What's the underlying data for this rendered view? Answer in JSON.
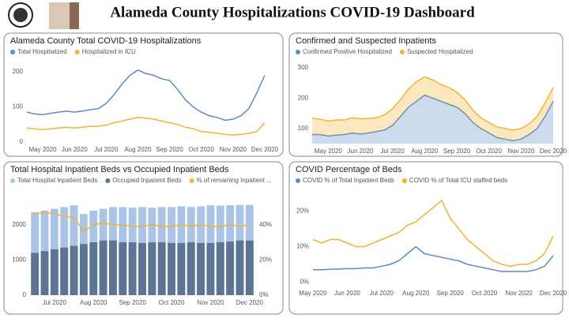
{
  "page_title": "Alameda County Hospitalizations COVID-19 Dashboard",
  "chart_data": [
    {
      "type": "line",
      "title": "Alameda County Total COVID-19 Hospitalizations",
      "categories": [
        null,
        null,
        "May 2020",
        null,
        null,
        null,
        "Jun 2020",
        null,
        null,
        null,
        "Jul 2020",
        null,
        null,
        null,
        "Aug 2020",
        null,
        null,
        null,
        "Sep 2020",
        null,
        null,
        null,
        "Oct 2020",
        null,
        null,
        null,
        "Nov 2020",
        null,
        null,
        null,
        "Dec 2020"
      ],
      "series": [
        {
          "name": "Total Hospitalized",
          "color": "#5b8cbf",
          "values": [
            85,
            80,
            78,
            82,
            85,
            88,
            85,
            88,
            92,
            95,
            110,
            135,
            165,
            190,
            205,
            195,
            190,
            180,
            175,
            150,
            120,
            100,
            85,
            75,
            70,
            62,
            65,
            75,
            95,
            140,
            190
          ]
        },
        {
          "name": "Hospitalized in ICU",
          "color": "#f2b430",
          "values": [
            40,
            38,
            35,
            38,
            40,
            42,
            40,
            42,
            45,
            45,
            48,
            55,
            60,
            65,
            70,
            68,
            65,
            60,
            55,
            50,
            42,
            38,
            30,
            28,
            25,
            22,
            20,
            22,
            25,
            30,
            55
          ]
        }
      ],
      "ylim": [
        0,
        220
      ],
      "yticks": [
        0,
        100,
        200
      ]
    },
    {
      "type": "area",
      "title": "Confirmed and Suspected Inpatients",
      "stacked": true,
      "categories": [
        null,
        null,
        "May 2020",
        null,
        null,
        null,
        "Jun 2020",
        null,
        null,
        null,
        "Jul 2020",
        null,
        null,
        null,
        "Aug 2020",
        null,
        null,
        null,
        "Sep 2020",
        null,
        null,
        null,
        "Oct 2020",
        null,
        null,
        null,
        "Nov 2020",
        null,
        null,
        null,
        "Dec 2020"
      ],
      "series": [
        {
          "name": "Confirmed Positive Hospitalized",
          "color": "#5b8cbf",
          "values": [
            80,
            80,
            75,
            78,
            80,
            85,
            82,
            85,
            90,
            95,
            110,
            140,
            170,
            190,
            210,
            200,
            190,
            180,
            170,
            150,
            120,
            100,
            85,
            70,
            65,
            60,
            65,
            80,
            100,
            140,
            190
          ]
        },
        {
          "name": "Suspected Hospitalized",
          "color": "#f2b430",
          "values": [
            55,
            50,
            50,
            50,
            48,
            50,
            50,
            48,
            45,
            50,
            55,
            55,
            60,
            65,
            60,
            60,
            55,
            55,
            50,
            45,
            40,
            35,
            35,
            35,
            35,
            35,
            35,
            35,
            40,
            45,
            45
          ]
        }
      ],
      "ylim": [
        50,
        310
      ],
      "yticks": [
        100,
        200,
        300
      ]
    },
    {
      "type": "bar",
      "title": "Total Hospital Inpatient Beds vs Occupied Inpatient Beds",
      "categories": [
        null,
        null,
        "Jul 2020",
        null,
        null,
        null,
        "Aug 2020",
        null,
        null,
        null,
        "Sep 2020",
        null,
        null,
        null,
        "Oct 2020",
        null,
        null,
        null,
        "Nov 2020",
        null,
        null,
        null,
        "Dec 2020"
      ],
      "series": [
        {
          "name": "Total Hospital Inpatient Beds",
          "color": "#a9c4e6",
          "values": [
            2350,
            2400,
            2450,
            2500,
            2550,
            2300,
            2400,
            2450,
            2500,
            2500,
            2480,
            2500,
            2480,
            2500,
            2500,
            2520,
            2500,
            2520,
            2550,
            2540,
            2550,
            2560,
            2560
          ]
        },
        {
          "name": "Occupied Inpatient Beds",
          "color": "#5b7593",
          "values": [
            1200,
            1250,
            1300,
            1350,
            1400,
            1450,
            1500,
            1550,
            1550,
            1500,
            1500,
            1480,
            1500,
            1500,
            1480,
            1480,
            1500,
            1480,
            1480,
            1500,
            1520,
            1550,
            1550
          ]
        },
        {
          "name": "% of remaining Inpatient ...",
          "color": "#f2b430",
          "axis": "y2",
          "values": [
            46,
            47,
            46,
            45,
            44,
            36,
            40,
            41,
            40,
            40,
            39,
            39,
            40,
            39,
            39,
            40,
            39,
            40,
            39,
            39,
            40,
            39,
            40
          ]
        }
      ],
      "ylim": [
        0,
        3000
      ],
      "yticks": [
        0,
        1000,
        2000
      ],
      "y2lim": [
        0,
        60
      ],
      "y2ticks": [
        {
          "value": 0,
          "label": "0%"
        },
        {
          "value": 20,
          "label": "20%"
        },
        {
          "value": 40,
          "label": "40%"
        }
      ]
    },
    {
      "type": "line",
      "title": "COVID Percentage of Beds",
      "categories": [
        "May 2020",
        null,
        null,
        null,
        "Jun 2020",
        null,
        null,
        null,
        "Jul 2020",
        null,
        null,
        null,
        "Aug 2020",
        null,
        null,
        null,
        "Sep 2020",
        null,
        null,
        null,
        "Oct 2020",
        null,
        null,
        null,
        "Nov 2020",
        null,
        null,
        null,
        "Dec 2020"
      ],
      "series": [
        {
          "name": "COVID % of Total Inpatient Beds",
          "color": "#5b8cbf",
          "values": [
            3.5,
            3.5,
            3.6,
            3.7,
            3.8,
            3.8,
            4,
            4,
            4.5,
            5,
            6,
            8,
            10,
            8,
            7.5,
            7,
            6.5,
            6,
            5,
            4.5,
            4,
            3.5,
            3,
            3,
            3,
            3,
            3.5,
            4.5,
            7.5
          ]
        },
        {
          "name": "COVID % of Total ICU staffed beds",
          "color": "#f2b430",
          "values": [
            12,
            11,
            12,
            12,
            11,
            10,
            10,
            11,
            12,
            13,
            14,
            16,
            17,
            19,
            21,
            23,
            18,
            15,
            12,
            10,
            8,
            6,
            5,
            4.5,
            5,
            5,
            6,
            8,
            13
          ]
        }
      ],
      "ylim": [
        -1,
        25
      ],
      "yticks": [
        {
          "value": 0,
          "label": "0%"
        },
        {
          "value": 10,
          "label": "10%"
        },
        {
          "value": 20,
          "label": "20%"
        }
      ]
    }
  ]
}
